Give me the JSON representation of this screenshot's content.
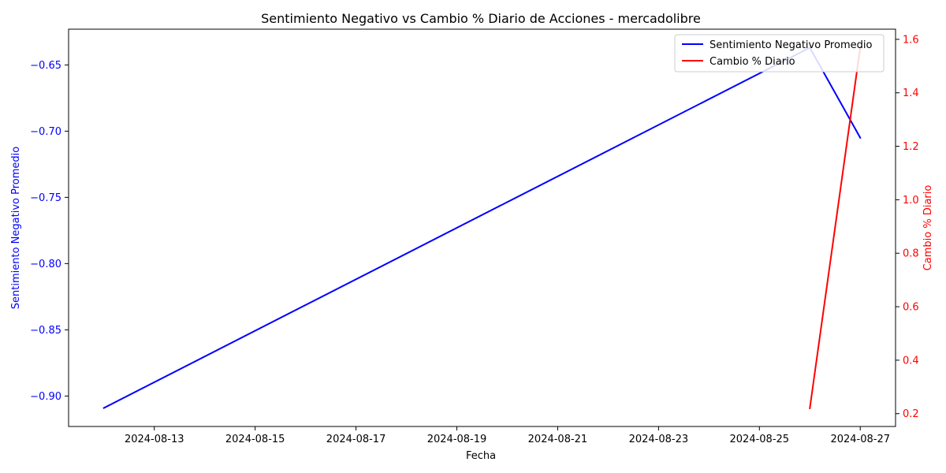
{
  "chart_data": {
    "type": "line",
    "title": "Sentimiento Negativo vs Cambio % Diario de Acciones - mercadolibre",
    "xlabel": "Fecha",
    "ylabel_left": "Sentimiento Negativo Promedio",
    "ylabel_right": "Cambio % Diario",
    "x_tick_labels": [
      "2024-08-13",
      "2024-08-15",
      "2024-08-17",
      "2024-08-19",
      "2024-08-21",
      "2024-08-23",
      "2024-08-25",
      "2024-08-27"
    ],
    "y_left_ticks": [
      -0.9,
      -0.85,
      -0.8,
      -0.75,
      -0.7,
      -0.65
    ],
    "y_left_tick_labels": [
      "−0.90",
      "−0.85",
      "−0.80",
      "−0.75",
      "−0.70",
      "−0.65"
    ],
    "y_right_ticks": [
      0.2,
      0.4,
      0.6,
      0.8,
      1.0,
      1.2,
      1.4,
      1.6
    ],
    "y_right_tick_labels": [
      "0.2",
      "0.4",
      "0.6",
      "0.8",
      "1.0",
      "1.2",
      "1.4",
      "1.6"
    ],
    "x_range": [
      "2024-08-11",
      "2024-08-27"
    ],
    "ylim_left": [
      -0.923,
      -0.623
    ],
    "ylim_right": [
      0.152,
      1.638
    ],
    "legend_position": "upper-right",
    "grid": false,
    "series": [
      {
        "name": "Sentimiento Negativo Promedio",
        "axis": "left",
        "color": "#0000ff",
        "x": [
          "2024-08-12",
          "2024-08-26",
          "2024-08-27"
        ],
        "values": [
          -0.909,
          -0.637,
          -0.705
        ]
      },
      {
        "name": "Cambio % Diario",
        "axis": "right",
        "color": "#ff0000",
        "x": [
          "2024-08-26",
          "2024-08-27"
        ],
        "values": [
          0.22,
          1.57
        ]
      }
    ],
    "left_axis_color": "#0000ff",
    "right_axis_color": "#ff0000"
  }
}
